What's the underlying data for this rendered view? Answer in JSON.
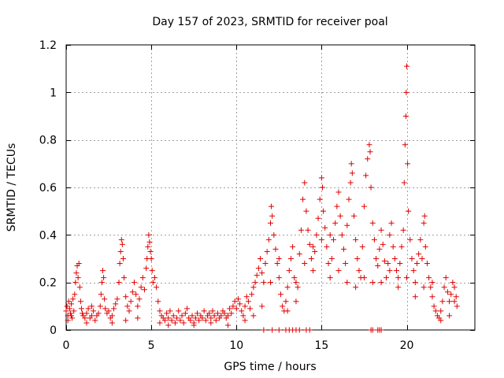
{
  "chart_data": {
    "type": "scatter",
    "title": "Day 157 of 2023, SRMTID for receiver poal",
    "xlabel": "GPS time / hours",
    "ylabel": "SRMTID / TECUs",
    "xlim": [
      0,
      24
    ],
    "ylim": [
      0,
      1.2
    ],
    "xticks": [
      0,
      5,
      10,
      15,
      20
    ],
    "xtick_labels": [
      "0",
      "5",
      "10",
      "15",
      "20"
    ],
    "yticks": [
      0,
      0.2,
      0.4,
      0.6,
      0.8,
      1.0,
      1.2
    ],
    "ytick_labels": [
      "0",
      "0.2",
      "0.4",
      "0.6",
      "0.8",
      "1",
      "1.2"
    ],
    "grid": true,
    "marker": "+",
    "series": [
      {
        "name": "SRMTID",
        "color": "#e00000",
        "points": [
          [
            0.0,
            0.08
          ],
          [
            0.05,
            0.1
          ],
          [
            0.1,
            0.06
          ],
          [
            0.15,
            0.12
          ],
          [
            0.2,
            0.09
          ],
          [
            0.25,
            0.07
          ],
          [
            0.3,
            0.11
          ],
          [
            0.35,
            0.05
          ],
          [
            0.4,
            0.13
          ],
          [
            0.45,
            0.08
          ],
          [
            0.5,
            0.15
          ],
          [
            0.55,
            0.2
          ],
          [
            0.6,
            0.24
          ],
          [
            0.65,
            0.27
          ],
          [
            0.7,
            0.22
          ],
          [
            0.75,
            0.28
          ],
          [
            0.8,
            0.18
          ],
          [
            0.85,
            0.12
          ],
          [
            0.9,
            0.09
          ],
          [
            0.95,
            0.07
          ],
          [
            1.0,
            0.06
          ],
          [
            1.1,
            0.05
          ],
          [
            1.2,
            0.07
          ],
          [
            1.3,
            0.09
          ],
          [
            1.4,
            0.05
          ],
          [
            1.5,
            0.06
          ],
          [
            1.6,
            0.08
          ],
          [
            1.7,
            0.04
          ],
          [
            1.8,
            0.06
          ],
          [
            1.9,
            0.07
          ],
          [
            2.0,
            0.1
          ],
          [
            2.05,
            0.15
          ],
          [
            2.1,
            0.2
          ],
          [
            2.15,
            0.25
          ],
          [
            2.2,
            0.22
          ],
          [
            2.25,
            0.13
          ],
          [
            2.3,
            0.09
          ],
          [
            2.4,
            0.07
          ],
          [
            2.5,
            0.08
          ],
          [
            2.6,
            0.05
          ],
          [
            2.7,
            0.06
          ],
          [
            2.8,
            0.09
          ],
          [
            2.9,
            0.11
          ],
          [
            3.0,
            0.13
          ],
          [
            3.1,
            0.2
          ],
          [
            3.15,
            0.28
          ],
          [
            3.2,
            0.33
          ],
          [
            3.25,
            0.38
          ],
          [
            3.3,
            0.36
          ],
          [
            3.35,
            0.3
          ],
          [
            3.4,
            0.22
          ],
          [
            3.5,
            0.14
          ],
          [
            3.6,
            0.1
          ],
          [
            3.7,
            0.08
          ],
          [
            3.8,
            0.12
          ],
          [
            3.9,
            0.16
          ],
          [
            4.0,
            0.2
          ],
          [
            4.1,
            0.15
          ],
          [
            4.2,
            0.1
          ],
          [
            4.3,
            0.13
          ],
          [
            4.4,
            0.18
          ],
          [
            4.5,
            0.22
          ],
          [
            4.6,
            0.17
          ],
          [
            4.7,
            0.26
          ],
          [
            4.75,
            0.3
          ],
          [
            4.8,
            0.35
          ],
          [
            4.85,
            0.4
          ],
          [
            4.9,
            0.37
          ],
          [
            4.95,
            0.33
          ],
          [
            5.0,
            0.3
          ],
          [
            5.05,
            0.25
          ],
          [
            5.1,
            0.2
          ],
          [
            5.2,
            0.22
          ],
          [
            5.3,
            0.18
          ],
          [
            5.4,
            0.12
          ],
          [
            5.5,
            0.08
          ],
          [
            5.6,
            0.06
          ],
          [
            5.7,
            0.05
          ],
          [
            5.8,
            0.04
          ],
          [
            5.9,
            0.07
          ],
          [
            6.0,
            0.05
          ],
          [
            6.1,
            0.08
          ],
          [
            6.2,
            0.04
          ],
          [
            6.3,
            0.06
          ],
          [
            6.4,
            0.03
          ],
          [
            6.5,
            0.05
          ],
          [
            6.6,
            0.08
          ],
          [
            6.7,
            0.04
          ],
          [
            6.8,
            0.06
          ],
          [
            6.9,
            0.03
          ],
          [
            7.0,
            0.07
          ],
          [
            7.1,
            0.09
          ],
          [
            7.2,
            0.05
          ],
          [
            7.3,
            0.04
          ],
          [
            7.4,
            0.06
          ],
          [
            7.5,
            0.03
          ],
          [
            7.6,
            0.05
          ],
          [
            7.7,
            0.07
          ],
          [
            7.8,
            0.04
          ],
          [
            7.9,
            0.06
          ],
          [
            8.0,
            0.05
          ],
          [
            8.1,
            0.08
          ],
          [
            8.2,
            0.04
          ],
          [
            8.3,
            0.06
          ],
          [
            8.4,
            0.07
          ],
          [
            8.5,
            0.05
          ],
          [
            8.6,
            0.08
          ],
          [
            8.7,
            0.06
          ],
          [
            8.8,
            0.04
          ],
          [
            8.9,
            0.07
          ],
          [
            9.0,
            0.05
          ],
          [
            9.1,
            0.06
          ],
          [
            9.2,
            0.08
          ],
          [
            9.3,
            0.07
          ],
          [
            9.4,
            0.05
          ],
          [
            9.5,
            0.06
          ],
          [
            9.6,
            0.09
          ],
          [
            9.7,
            0.07
          ],
          [
            9.8,
            0.1
          ],
          [
            9.9,
            0.12
          ],
          [
            10.0,
            0.09
          ],
          [
            10.1,
            0.13
          ],
          [
            10.2,
            0.11
          ],
          [
            10.3,
            0.08
          ],
          [
            10.4,
            0.06
          ],
          [
            10.5,
            0.1
          ],
          [
            10.6,
            0.14
          ],
          [
            10.7,
            0.12
          ],
          [
            10.8,
            0.09
          ],
          [
            10.9,
            0.15
          ],
          [
            11.0,
            0.18
          ],
          [
            11.1,
            0.2
          ],
          [
            11.2,
            0.23
          ],
          [
            11.3,
            0.26
          ],
          [
            11.4,
            0.3
          ],
          [
            11.5,
            0.24
          ],
          [
            11.6,
            0.2
          ],
          [
            11.7,
            0.28
          ],
          [
            11.8,
            0.33
          ],
          [
            11.9,
            0.38
          ],
          [
            12.0,
            0.45
          ],
          [
            12.05,
            0.52
          ],
          [
            12.1,
            0.48
          ],
          [
            12.2,
            0.4
          ],
          [
            12.3,
            0.34
          ],
          [
            12.4,
            0.28
          ],
          [
            12.5,
            0.22
          ],
          [
            12.6,
            0.15
          ],
          [
            12.7,
            0.1
          ],
          [
            12.8,
            0.08
          ],
          [
            12.9,
            0.12
          ],
          [
            13.0,
            0.18
          ],
          [
            13.1,
            0.25
          ],
          [
            13.2,
            0.3
          ],
          [
            13.3,
            0.35
          ],
          [
            13.4,
            0.22
          ],
          [
            13.5,
            0.12
          ],
          [
            13.6,
            0.18
          ],
          [
            13.7,
            0.32
          ],
          [
            13.8,
            0.42
          ],
          [
            13.9,
            0.55
          ],
          [
            14.0,
            0.62
          ],
          [
            14.1,
            0.5
          ],
          [
            14.2,
            0.42
          ],
          [
            14.3,
            0.36
          ],
          [
            14.4,
            0.3
          ],
          [
            14.5,
            0.25
          ],
          [
            14.6,
            0.33
          ],
          [
            14.7,
            0.4
          ],
          [
            14.8,
            0.47
          ],
          [
            14.9,
            0.55
          ],
          [
            15.0,
            0.64
          ],
          [
            15.05,
            0.6
          ],
          [
            15.1,
            0.5
          ],
          [
            15.2,
            0.43
          ],
          [
            15.3,
            0.35
          ],
          [
            15.4,
            0.28
          ],
          [
            15.5,
            0.22
          ],
          [
            15.6,
            0.3
          ],
          [
            15.7,
            0.38
          ],
          [
            15.8,
            0.45
          ],
          [
            15.9,
            0.52
          ],
          [
            16.0,
            0.58
          ],
          [
            16.1,
            0.48
          ],
          [
            16.2,
            0.4
          ],
          [
            16.3,
            0.34
          ],
          [
            16.4,
            0.28
          ],
          [
            16.5,
            0.44
          ],
          [
            16.6,
            0.55
          ],
          [
            16.7,
            0.62
          ],
          [
            16.75,
            0.7
          ],
          [
            16.8,
            0.66
          ],
          [
            16.9,
            0.48
          ],
          [
            17.0,
            0.38
          ],
          [
            17.1,
            0.3
          ],
          [
            17.2,
            0.25
          ],
          [
            17.3,
            0.22
          ],
          [
            17.4,
            0.35
          ],
          [
            17.5,
            0.52
          ],
          [
            17.6,
            0.65
          ],
          [
            17.7,
            0.72
          ],
          [
            17.8,
            0.78
          ],
          [
            17.85,
            0.75
          ],
          [
            17.9,
            0.6
          ],
          [
            18.0,
            0.45
          ],
          [
            18.1,
            0.38
          ],
          [
            18.2,
            0.3
          ],
          [
            18.3,
            0.27
          ],
          [
            18.4,
            0.34
          ],
          [
            18.5,
            0.42
          ],
          [
            18.6,
            0.36
          ],
          [
            18.7,
            0.29
          ],
          [
            18.8,
            0.22
          ],
          [
            18.9,
            0.28
          ],
          [
            19.0,
            0.4
          ],
          [
            19.1,
            0.45
          ],
          [
            19.2,
            0.35
          ],
          [
            19.3,
            0.3
          ],
          [
            19.4,
            0.25
          ],
          [
            19.5,
            0.22
          ],
          [
            19.6,
            0.28
          ],
          [
            19.7,
            0.35
          ],
          [
            19.8,
            0.42
          ],
          [
            19.85,
            0.62
          ],
          [
            19.9,
            0.78
          ],
          [
            19.95,
            0.9
          ],
          [
            19.97,
            1.0
          ],
          [
            20.0,
            1.11
          ],
          [
            20.05,
            0.7
          ],
          [
            20.1,
            0.5
          ],
          [
            20.2,
            0.38
          ],
          [
            20.3,
            0.3
          ],
          [
            20.4,
            0.25
          ],
          [
            20.5,
            0.2
          ],
          [
            20.6,
            0.28
          ],
          [
            20.7,
            0.32
          ],
          [
            20.8,
            0.38
          ],
          [
            20.9,
            0.3
          ],
          [
            21.0,
            0.45
          ],
          [
            21.05,
            0.48
          ],
          [
            21.1,
            0.35
          ],
          [
            21.2,
            0.28
          ],
          [
            21.3,
            0.22
          ],
          [
            21.4,
            0.18
          ],
          [
            21.5,
            0.14
          ],
          [
            21.6,
            0.1
          ],
          [
            21.7,
            0.08
          ],
          [
            21.8,
            0.06
          ],
          [
            21.9,
            0.05
          ],
          [
            22.0,
            0.08
          ],
          [
            22.1,
            0.12
          ],
          [
            22.2,
            0.18
          ],
          [
            22.3,
            0.22
          ],
          [
            22.4,
            0.16
          ],
          [
            22.5,
            0.12
          ],
          [
            22.6,
            0.15
          ],
          [
            22.7,
            0.2
          ],
          [
            22.8,
            0.18
          ],
          [
            22.9,
            0.14
          ],
          [
            22.95,
            0.1
          ],
          [
            0.1,
            0.04
          ],
          [
            0.3,
            0.06
          ],
          [
            1.2,
            0.03
          ],
          [
            1.5,
            0.1
          ],
          [
            2.7,
            0.03
          ],
          [
            3.5,
            0.04
          ],
          [
            4.2,
            0.05
          ],
          [
            5.5,
            0.03
          ],
          [
            6.0,
            0.02
          ],
          [
            7.5,
            0.02
          ],
          [
            8.5,
            0.03
          ],
          [
            9.5,
            0.02
          ],
          [
            10.5,
            0.04
          ],
          [
            11.0,
            0.06
          ],
          [
            11.5,
            0.1
          ],
          [
            12.0,
            0.2
          ],
          [
            12.5,
            0.3
          ],
          [
            13.0,
            0.08
          ],
          [
            13.5,
            0.2
          ],
          [
            14.0,
            0.28
          ],
          [
            14.5,
            0.35
          ],
          [
            15.0,
            0.38
          ],
          [
            15.5,
            0.4
          ],
          [
            16.0,
            0.25
          ],
          [
            16.5,
            0.2
          ],
          [
            17.0,
            0.18
          ],
          [
            17.5,
            0.22
          ],
          [
            18.0,
            0.2
          ],
          [
            18.5,
            0.2
          ],
          [
            19.0,
            0.25
          ],
          [
            19.5,
            0.18
          ],
          [
            20.0,
            0.22
          ],
          [
            20.5,
            0.14
          ],
          [
            21.0,
            0.18
          ],
          [
            21.5,
            0.2
          ],
          [
            22.0,
            0.04
          ],
          [
            22.5,
            0.06
          ],
          [
            22.8,
            0.12
          ],
          [
            11.6,
            0
          ],
          [
            12.1,
            0
          ],
          [
            12.5,
            0
          ],
          [
            12.9,
            0
          ],
          [
            13.1,
            0
          ],
          [
            13.3,
            0
          ],
          [
            13.5,
            0
          ],
          [
            13.7,
            0
          ],
          [
            14.1,
            0
          ],
          [
            14.3,
            0
          ],
          [
            17.9,
            0
          ],
          [
            18.0,
            0
          ],
          [
            18.3,
            0
          ],
          [
            18.4,
            0
          ],
          [
            18.5,
            0
          ]
        ]
      }
    ]
  }
}
